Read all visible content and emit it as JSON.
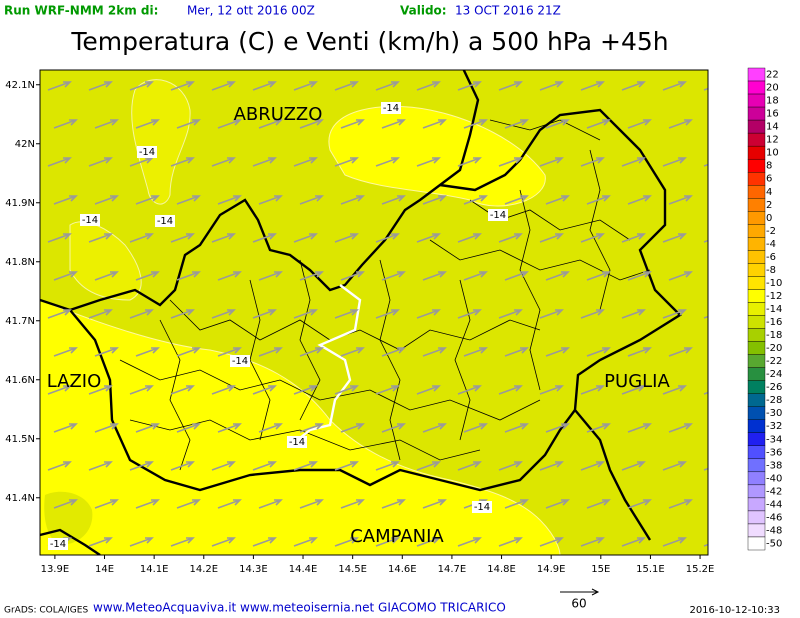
{
  "header": {
    "run_label": "Run WRF-NMM 2km di:",
    "run_date": "Mer, 12 ott 2016 00Z",
    "valid_label": "Valido:",
    "valid_date": "13 OCT 2016 21Z"
  },
  "title": "Temperatura (C) e Venti (km/h) a 500 hPa +45h",
  "map": {
    "xlim": [
      13.87,
      15.216
    ],
    "ylim": [
      41.303,
      42.125
    ],
    "xticks": [
      {
        "value": 13.9,
        "label": "13.9E"
      },
      {
        "value": 14,
        "label": "14E"
      },
      {
        "value": 14.1,
        "label": "14.1E"
      },
      {
        "value": 14.2,
        "label": "14.2E"
      },
      {
        "value": 14.3,
        "label": "14.3E"
      },
      {
        "value": 14.4,
        "label": "14.4E"
      },
      {
        "value": 14.5,
        "label": "14.5E"
      },
      {
        "value": 14.6,
        "label": "14.6E"
      },
      {
        "value": 14.7,
        "label": "14.7E"
      },
      {
        "value": 14.8,
        "label": "14.8E"
      },
      {
        "value": 14.9,
        "label": "14.9E"
      },
      {
        "value": 15,
        "label": "15E"
      },
      {
        "value": 15.1,
        "label": "15.1E"
      },
      {
        "value": 15.2,
        "label": "15.2E"
      }
    ],
    "yticks": [
      {
        "value": 42.1,
        "label": "42.1N"
      },
      {
        "value": 42,
        "label": "42N"
      },
      {
        "value": 41.9,
        "label": "41.9N"
      },
      {
        "value": 41.8,
        "label": "41.8N"
      },
      {
        "value": 41.7,
        "label": "41.7N"
      },
      {
        "value": 41.6,
        "label": "41.6N"
      },
      {
        "value": 41.5,
        "label": "41.5N"
      },
      {
        "value": 41.4,
        "label": "41.4N"
      }
    ],
    "regions": [
      "ABRUZZO",
      "LAZIO",
      "PUGLIA",
      "CAMPANIA"
    ],
    "contour_labels": [
      -14,
      -14,
      -14,
      -14,
      -14,
      -14,
      -14,
      -14,
      -14
    ]
  },
  "colorbar": {
    "levels": [
      22,
      20,
      18,
      16,
      14,
      12,
      10,
      8,
      6,
      4,
      2,
      0,
      -2,
      -4,
      -6,
      -8,
      -10,
      -12,
      -14,
      -16,
      -18,
      -20,
      -22,
      -24,
      -26,
      -28,
      -30,
      -32,
      -34,
      -36,
      -38,
      -40,
      -42,
      -44,
      -46,
      -48,
      -50
    ],
    "colors": [
      "#ff40ff",
      "#ff00d0",
      "#e600b4",
      "#cc0099",
      "#b30066",
      "#cc0033",
      "#e60000",
      "#ff0000",
      "#ff3300",
      "#ff6600",
      "#ff8000",
      "#ff9900",
      "#ffa800",
      "#ffb400",
      "#ffc200",
      "#ffd200",
      "#ffe400",
      "#ffff00",
      "#e8f000",
      "#cde200",
      "#a8d000",
      "#84c000",
      "#58a830",
      "#289040",
      "#008060",
      "#006890",
      "#0050b0",
      "#0030d0",
      "#2020f0",
      "#5050ff",
      "#7070ff",
      "#9080ff",
      "#b098ff",
      "#c8a8ff",
      "#e0c4ff",
      "#f0dcff",
      "#ffffff"
    ]
  },
  "scale_arrow": 60,
  "footer": {
    "software": "GrADS: COLA/IGES",
    "credits": "www.MeteoAcquaviva.it www.meteoisernia.net GIACOMO TRICARICO",
    "timestamp": "2016-10-12-10:33"
  }
}
